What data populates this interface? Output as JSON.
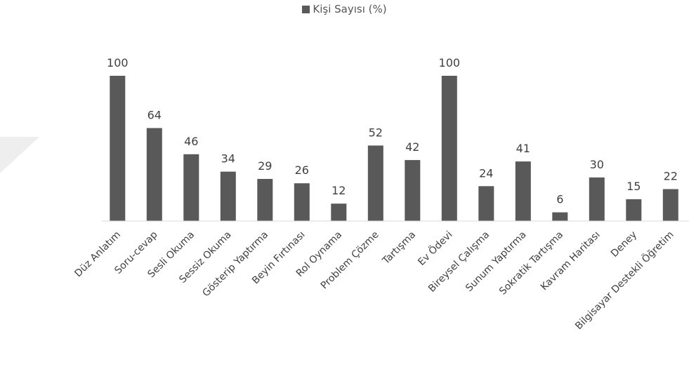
{
  "chart_data": {
    "type": "bar",
    "categories": [
      "Düz Anlatım",
      "Soru-cevap",
      "Sesli Okuma",
      "Sessiz Okuma",
      "Gösterip Yaptırma",
      "Beyin Fırtınası",
      "Rol Oynama",
      "Problem Çözme",
      "Tartışma",
      "Ev Ödevi",
      "Bireysel Çalışma",
      "Sunum Yaptırma",
      "Sokratik Tartışma",
      "Kavram Haritası",
      "Deney",
      "Bilgisayar Destekli Öğretim"
    ],
    "series": [
      {
        "name": "Kişi Sayısı (%)",
        "values": [
          100,
          64,
          46,
          34,
          29,
          26,
          12,
          52,
          42,
          100,
          24,
          41,
          6,
          30,
          15,
          22
        ],
        "color": "#595959"
      }
    ],
    "data_labels": [
      "100",
      "64",
      "46",
      "34",
      "29",
      "26",
      "12",
      "52",
      "42",
      "100",
      "24",
      "41",
      "6",
      "30",
      "15",
      "22"
    ],
    "ylim": [
      0,
      100
    ],
    "grid": false,
    "legend_position": "top-center",
    "colors": {
      "bar": "#595959",
      "axis": "#d9d9d9",
      "label_text": "#404040",
      "legend_text": "#555555"
    }
  }
}
